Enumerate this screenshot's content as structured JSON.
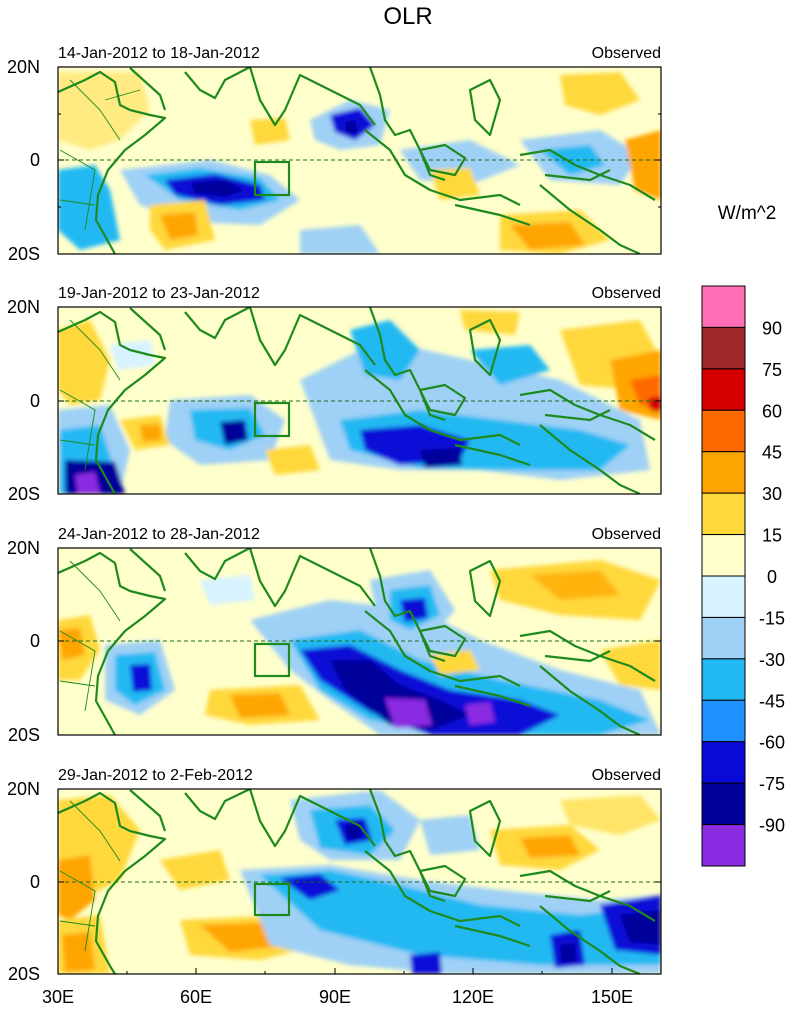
{
  "title": "OLR",
  "units": "W/m^2",
  "panels": [
    {
      "date": "14-Jan-2012 to 18-Jan-2012",
      "label": "Observed"
    },
    {
      "date": "19-Jan-2012 to 23-Jan-2012",
      "label": "Observed"
    },
    {
      "date": "24-Jan-2012 to 28-Jan-2012",
      "label": "Observed"
    },
    {
      "date": "29-Jan-2012 to 2-Feb-2012",
      "label": "Observed"
    }
  ],
  "lat_ticks": [
    "20N",
    "0",
    "20S"
  ],
  "lon_ticks": [
    "30E",
    "60E",
    "90E",
    "120E",
    "150E"
  ],
  "colorbar": {
    "colors": [
      "#ff6eb4",
      "#a02828",
      "#d40000",
      "#ff6a00",
      "#ffa500",
      "#ffd83a",
      "#ffffcc",
      "#d6f3ff",
      "#9fd0f5",
      "#21b9f3",
      "#1e90ff",
      "#0a0ad8",
      "#02029a",
      "#8a2be2"
    ],
    "labels": [
      "90",
      "75",
      "60",
      "45",
      "30",
      "15",
      "0",
      "-15",
      "-30",
      "-45",
      "-60",
      "-75",
      "-90"
    ]
  }
}
